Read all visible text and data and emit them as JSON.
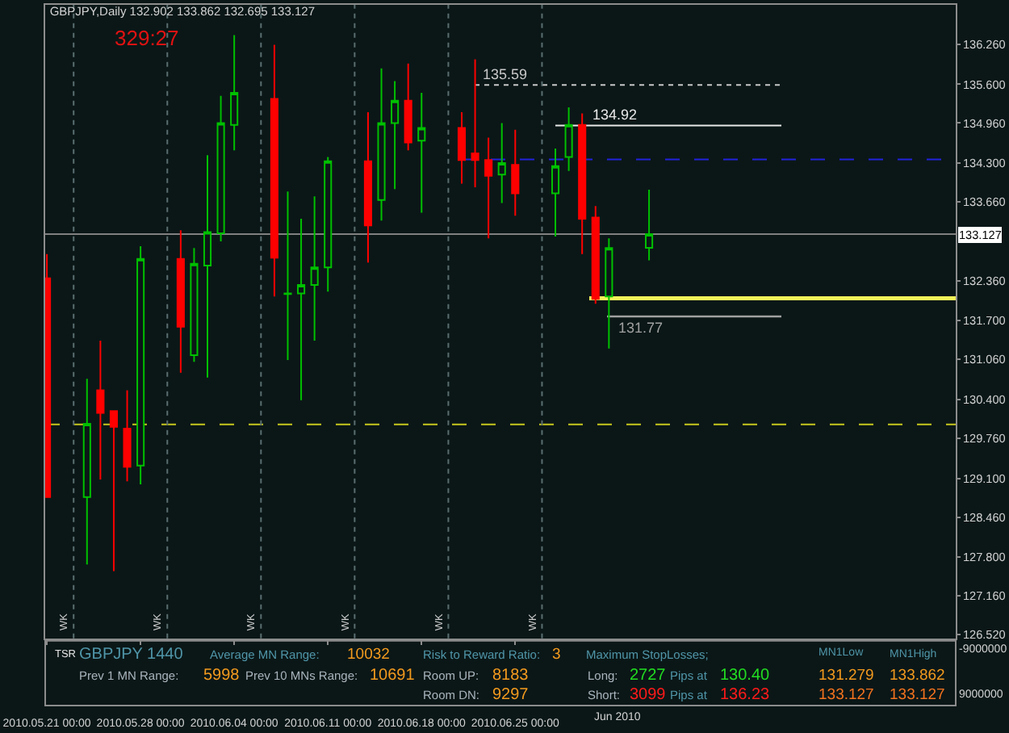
{
  "chart_data": {
    "type": "candlestick",
    "title": "GBPJPY,Daily 132.902 133.862 132.695 133.127",
    "x": [
      "2010-05-21",
      "2010-05-24",
      "2010-05-25",
      "2010-05-26",
      "2010-05-27",
      "2010-05-28",
      "2010-05-31",
      "2010-06-01",
      "2010-06-02",
      "2010-06-03",
      "2010-06-04",
      "2010-06-07",
      "2010-06-08",
      "2010-06-09",
      "2010-06-10",
      "2010-06-11",
      "2010-06-14",
      "2010-06-15",
      "2010-06-16",
      "2010-06-17",
      "2010-06-18",
      "2010-06-21",
      "2010-06-22",
      "2010-06-23",
      "2010-06-24",
      "2010-06-25",
      "2010-06-28",
      "2010-06-29",
      "2010-06-30",
      "2010-07-01",
      "2010-07-02",
      "2010-07-05"
    ],
    "ohlc": [
      [
        132.4,
        132.8,
        128.79,
        128.79
      ],
      [
        128.79,
        130.74,
        127.68,
        130.0
      ],
      [
        130.55,
        131.37,
        129.08,
        130.18
      ],
      [
        130.21,
        130.22,
        127.57,
        129.95
      ],
      [
        129.92,
        130.55,
        129.05,
        129.29
      ],
      [
        129.31,
        132.93,
        129.0,
        132.72
      ],
      [
        132.72,
        133.19,
        130.84,
        131.6
      ],
      [
        131.13,
        132.9,
        131.02,
        132.64
      ],
      [
        132.61,
        134.43,
        130.76,
        133.16
      ],
      [
        133.14,
        135.41,
        133.01,
        134.96
      ],
      [
        134.93,
        136.41,
        134.51,
        135.46
      ],
      [
        135.36,
        136.25,
        132.1,
        132.74
      ],
      [
        132.14,
        133.83,
        131.05,
        132.15
      ],
      [
        132.15,
        133.38,
        130.39,
        132.29
      ],
      [
        132.29,
        133.75,
        131.37,
        132.58
      ],
      [
        132.58,
        134.4,
        132.18,
        134.33
      ],
      [
        134.33,
        135.14,
        132.66,
        133.27
      ],
      [
        133.69,
        135.86,
        133.35,
        134.96
      ],
      [
        134.96,
        135.65,
        133.87,
        135.33
      ],
      [
        135.33,
        135.94,
        134.51,
        134.64
      ],
      [
        134.67,
        135.46,
        133.48,
        134.88
      ],
      [
        134.88,
        135.14,
        133.96,
        134.35
      ],
      [
        134.46,
        136.01,
        133.9,
        134.35
      ],
      [
        134.35,
        134.72,
        133.06,
        134.09
      ],
      [
        134.11,
        134.96,
        133.64,
        134.3
      ],
      [
        134.27,
        134.85,
        133.43,
        133.8
      ],
      [
        133.8,
        134.54,
        133.09,
        134.25
      ],
      [
        134.4,
        135.22,
        134.17,
        134.93
      ],
      [
        134.93,
        135.12,
        132.8,
        133.38
      ],
      [
        133.4,
        133.59,
        131.98,
        132.06
      ],
      [
        132.1,
        133.06,
        131.24,
        132.9
      ],
      [
        132.902,
        133.862,
        132.695,
        133.127
      ]
    ],
    "colors": [
      "#ff0000",
      "#00c000",
      "#ff0000",
      "#ff0000",
      "#ff0000",
      "#00c000",
      "#ff0000",
      "#00c000",
      "#00c000",
      "#00c000",
      "#00c000",
      "#ff0000",
      "#00c000",
      "#00c000",
      "#00c000",
      "#00c000",
      "#ff0000",
      "#00c000",
      "#00c000",
      "#ff0000",
      "#00c000",
      "#ff0000",
      "#ff0000",
      "#ff0000",
      "#00c000",
      "#ff0000",
      "#00c000",
      "#00c000",
      "#ff0000",
      "#ff0000",
      "#00c000",
      "#00c000"
    ],
    "xlim": [
      "2010-05-20T21:00",
      "2010-07-27T22:00"
    ],
    "xticks": [
      {
        "value": "2010-05-21",
        "label": "2010.05.21 00:00"
      },
      {
        "value": "2010-05-28",
        "label": "2010.05.28 00:00"
      },
      {
        "value": "2010-06-04",
        "label": "2010.06.04 00:00"
      },
      {
        "value": "2010-06-11",
        "label": "2010.06.11 00:00"
      },
      {
        "value": "2010-06-18",
        "label": "2010.06.18 00:00"
      },
      {
        "value": "2010-06-25",
        "label": "2010.06.25 00:00"
      }
    ],
    "ylim": [
      126.46,
      136.91
    ],
    "yticks": [
      {
        "value": 126.52,
        "label": "126.520"
      },
      {
        "value": 127.16,
        "label": "127.160"
      },
      {
        "value": 127.8,
        "label": "127.800"
      },
      {
        "value": 128.46,
        "label": "128.460"
      },
      {
        "value": 129.1,
        "label": "129.100"
      },
      {
        "value": 129.76,
        "label": "129.760"
      },
      {
        "value": 130.4,
        "label": "130.400"
      },
      {
        "value": 131.06,
        "label": "131.060"
      },
      {
        "value": 131.7,
        "label": "131.700"
      },
      {
        "value": 132.36,
        "label": "132.360"
      },
      {
        "value": 133.66,
        "label": "133.660"
      },
      {
        "value": 134.3,
        "label": "134.300"
      },
      {
        "value": 134.96,
        "label": "134.960"
      },
      {
        "value": 135.6,
        "label": "135.600"
      },
      {
        "value": 136.26,
        "label": "136.260"
      }
    ],
    "ref_lines": [
      {
        "axis": "y",
        "value": 135.59,
        "label": "135.59",
        "color": "#c8c8c8",
        "line_style": "dotted"
      },
      {
        "axis": "y",
        "value": 134.92,
        "label": "134.92",
        "color": "#e8e8e8",
        "line_style": "solid"
      },
      {
        "axis": "y",
        "value": 134.36,
        "color": "#2222dd",
        "line_style": "dashed"
      },
      {
        "axis": "y",
        "value": 133.127,
        "label": "133.127",
        "color": "#808080",
        "line_style": "solid"
      },
      {
        "axis": "y",
        "value": 132.07,
        "color": "#f5f55a",
        "line_style": "solid"
      },
      {
        "axis": "y",
        "value": 131.77,
        "label": "131.77",
        "color": "#a0a0a0",
        "line_style": "solid"
      },
      {
        "axis": "y",
        "value": 129.99,
        "color": "#c8c81e",
        "line_style": "dashed"
      },
      {
        "axis": "x",
        "value": "2010-05-23",
        "label": "WK",
        "color": "#5a6e70",
        "line_style": "dotted"
      },
      {
        "axis": "x",
        "value": "2010-05-30",
        "label": "WK",
        "color": "#5a6e70",
        "line_style": "dotted"
      },
      {
        "axis": "x",
        "value": "2010-06-06",
        "label": "WK",
        "color": "#5a6e70",
        "line_style": "dotted"
      },
      {
        "axis": "x",
        "value": "2010-06-13",
        "label": "WK",
        "color": "#5a6e70",
        "line_style": "dotted"
      },
      {
        "axis": "x",
        "value": "2010-06-20",
        "label": "WK",
        "color": "#5a6e70",
        "line_style": "dotted"
      },
      {
        "axis": "x",
        "value": "2010-06-27",
        "label": "WK",
        "color": "#5a6e70",
        "line_style": "dotted"
      }
    ],
    "annotations": [
      "329:27",
      "TSR",
      "GBPJPY 1440",
      "Average MN Range:",
      "10032",
      "Risk to Reward Ratio:",
      "3",
      "Maximum StopLosses;",
      "MN1Low",
      "MN1High",
      "Prev 1 MN Range:",
      "5998",
      "Prev 10 MNs Range:",
      "10691",
      "Room UP:",
      "8183",
      "Long:",
      "2727",
      "Pips at",
      "130.40",
      "131.279",
      "133.862",
      "Room DN:",
      "9297",
      "Short:",
      "3099",
      "Pips at",
      "136.23",
      "133.127",
      "133.127",
      "-9000000",
      "9000000",
      "Jun 2010"
    ]
  }
}
